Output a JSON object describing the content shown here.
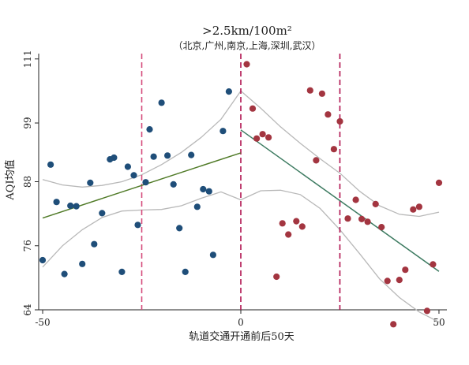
{
  "chart_data": {
    "type": "scatter",
    "title": ">2.5km/100m²",
    "subtitle": "（北京,广州,南京,上海,深圳,武汉）",
    "xlabel": "轨道交通开通前后50天",
    "ylabel": "AQI均值",
    "xlim": [
      -51,
      52
    ],
    "ylim": [
      64,
      112
    ],
    "xticks": [
      -50,
      0,
      50
    ],
    "xtick_labels": [
      "-50",
      "0",
      "50"
    ],
    "yticks": [
      64,
      76,
      88,
      99,
      111
    ],
    "ytick_labels": [
      "64",
      "76",
      "88",
      "99",
      "111"
    ],
    "vlines": [
      {
        "x": -25,
        "color": "#d44a7a"
      },
      {
        "x": 0,
        "color": "#b0124f"
      },
      {
        "x": 25,
        "color": "#b0124f"
      }
    ],
    "series": [
      {
        "color": "#1f4e79",
        "points": [
          [
            -50,
            73.3
          ],
          [
            -48,
            91.2
          ],
          [
            -46.5,
            84.2
          ],
          [
            -44.5,
            70.7
          ],
          [
            -43,
            83.5
          ],
          [
            -41.5,
            83.4
          ],
          [
            -40,
            72.6
          ],
          [
            -38,
            87.8
          ],
          [
            -37,
            76.3
          ],
          [
            -35,
            82.1
          ],
          [
            -33,
            92.2
          ],
          [
            -32,
            92.5
          ],
          [
            -30,
            71.1
          ],
          [
            -28.5,
            90.8
          ],
          [
            -27,
            89.2
          ],
          [
            -26,
            79.9
          ],
          [
            -24,
            87.9
          ],
          [
            -23,
            97.8
          ],
          [
            -22,
            92.7
          ],
          [
            -20,
            102.8
          ],
          [
            -18.5,
            92.9
          ],
          [
            -17,
            87.5
          ],
          [
            -15.5,
            79.3
          ],
          [
            -14,
            71.1
          ],
          [
            -12.5,
            93.0
          ],
          [
            -11,
            83.3
          ],
          [
            -9.5,
            86.6
          ],
          [
            -8,
            86.2
          ],
          [
            -7,
            74.3
          ],
          [
            -4.5,
            97.5
          ],
          [
            -3,
            104.9
          ]
        ]
      },
      {
        "color": "#a33540",
        "points": [
          [
            1.5,
            110.0
          ],
          [
            3,
            101.7
          ],
          [
            4,
            96.1
          ],
          [
            5.5,
            96.9
          ],
          [
            7,
            96.3
          ],
          [
            9,
            70.2
          ],
          [
            10.5,
            80.2
          ],
          [
            12,
            78.1
          ],
          [
            14,
            80.6
          ],
          [
            15.5,
            79.6
          ],
          [
            17.5,
            105.1
          ],
          [
            19,
            92.0
          ],
          [
            20.5,
            104.5
          ],
          [
            22,
            100.6
          ],
          [
            23.5,
            94.1
          ],
          [
            25,
            99.3
          ],
          [
            27,
            81.1
          ],
          [
            29,
            84.6
          ],
          [
            30.5,
            81.0
          ],
          [
            32,
            80.5
          ],
          [
            34,
            83.8
          ],
          [
            35.5,
            79.5
          ],
          [
            37,
            69.4
          ],
          [
            38.5,
            61.3
          ],
          [
            40,
            69.6
          ],
          [
            41.5,
            71.5
          ],
          [
            43.5,
            82.8
          ],
          [
            45,
            83.3
          ],
          [
            47,
            63.8
          ],
          [
            48.5,
            72.5
          ],
          [
            50,
            87.8
          ]
        ]
      }
    ],
    "fits": [
      {
        "color": "#4f7a26",
        "x": [
          -50,
          0
        ],
        "y": [
          81.2,
          93.4
        ]
      },
      {
        "color": "#3c7a60",
        "x": [
          0,
          50
        ],
        "y": [
          97.7,
          71.2
        ]
      }
    ],
    "ci": {
      "color": "#b8b8b8",
      "upper": [
        [
          -50,
          88.4
        ],
        [
          -45,
          87.4
        ],
        [
          -40,
          87.0
        ],
        [
          -35,
          87.3
        ],
        [
          -30,
          88.0
        ],
        [
          -25,
          89.3
        ],
        [
          -20,
          91.2
        ],
        [
          -15,
          93.5
        ],
        [
          -10,
          96.3
        ],
        [
          -5,
          99.7
        ],
        [
          0,
          105.0
        ],
        [
          5,
          101.8
        ],
        [
          10,
          98.3
        ],
        [
          15,
          95.2
        ],
        [
          20,
          92.3
        ],
        [
          25,
          89.6
        ],
        [
          30,
          86.2
        ],
        [
          35,
          83.5
        ],
        [
          40,
          81.9
        ],
        [
          45,
          81.5
        ],
        [
          50,
          82.3
        ]
      ],
      "lower": [
        [
          -50,
          72.0
        ],
        [
          -45,
          76.0
        ],
        [
          -40,
          79.0
        ],
        [
          -35,
          81.3
        ],
        [
          -30,
          82.5
        ],
        [
          -25,
          82.7
        ],
        [
          -20,
          82.8
        ],
        [
          -15,
          83.5
        ],
        [
          -10,
          84.9
        ],
        [
          -5,
          86.1
        ],
        [
          0,
          84.6
        ],
        [
          5,
          86.3
        ],
        [
          10,
          86.4
        ],
        [
          15,
          85.6
        ],
        [
          20,
          83.0
        ],
        [
          25,
          79.0
        ],
        [
          30,
          74.5
        ],
        [
          35,
          69.8
        ],
        [
          40,
          66.3
        ],
        [
          45,
          63.6
        ],
        [
          50,
          61.7
        ]
      ]
    }
  }
}
